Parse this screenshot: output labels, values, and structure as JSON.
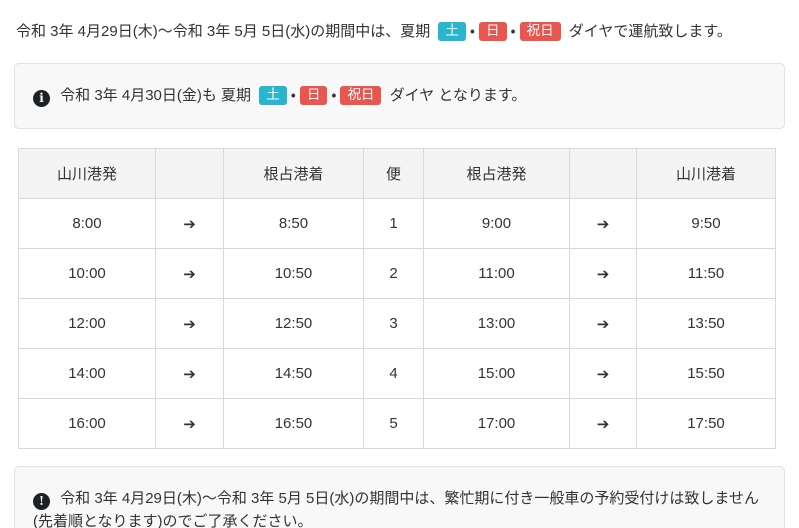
{
  "colors": {
    "badge_saturday": "#29b5ce",
    "badge_sunday_holiday": "#e9564f",
    "text": "#333333",
    "box_background": "#f8f8f8",
    "box_border": "#e2e2e2",
    "table_border": "#d9d9d9",
    "table_header_background": "#f4f4f4"
  },
  "badges": {
    "saturday": "土",
    "sunday": "日",
    "holiday": "祝日",
    "separator": "・"
  },
  "icons": {
    "info_circle_glyph": "i",
    "exclamation_circle_glyph": "!"
  },
  "top_notice": {
    "prefix": "令和 3年 4月29日(木)～令和 3年 5月 5日(水)の期間中は、夏期",
    "suffix": "ダイヤで運航致します。"
  },
  "info_box_top": {
    "prefix": "令和 3年 4月30日(金)も 夏期",
    "suffix": "ダイヤ となります。"
  },
  "timetable": {
    "arrow": "➔",
    "headers": {
      "yamakawa_departure": "山川港発",
      "nejime_arrival": "根占港着",
      "trip_number": "便",
      "nejime_departure": "根占港発",
      "yamakawa_arrival": "山川港着"
    },
    "rows": [
      {
        "yamakawa_dep": "8:00",
        "nejime_arr": "8:50",
        "trip": "1",
        "nejime_dep": "9:00",
        "yamakawa_arr": "9:50"
      },
      {
        "yamakawa_dep": "10:00",
        "nejime_arr": "10:50",
        "trip": "2",
        "nejime_dep": "11:00",
        "yamakawa_arr": "11:50"
      },
      {
        "yamakawa_dep": "12:00",
        "nejime_arr": "12:50",
        "trip": "3",
        "nejime_dep": "13:00",
        "yamakawa_arr": "13:50"
      },
      {
        "yamakawa_dep": "14:00",
        "nejime_arr": "14:50",
        "trip": "4",
        "nejime_dep": "15:00",
        "yamakawa_arr": "15:50"
      },
      {
        "yamakawa_dep": "16:00",
        "nejime_arr": "16:50",
        "trip": "5",
        "nejime_dep": "17:00",
        "yamakawa_arr": "17:50"
      }
    ]
  },
  "info_box_bottom": {
    "text": "令和 3年 4月29日(木)～令和 3年 5月 5日(水)の期間中は、繁忙期に付き一般車の予約受付けは致しません(先着順となります)のでご了承ください。"
  }
}
